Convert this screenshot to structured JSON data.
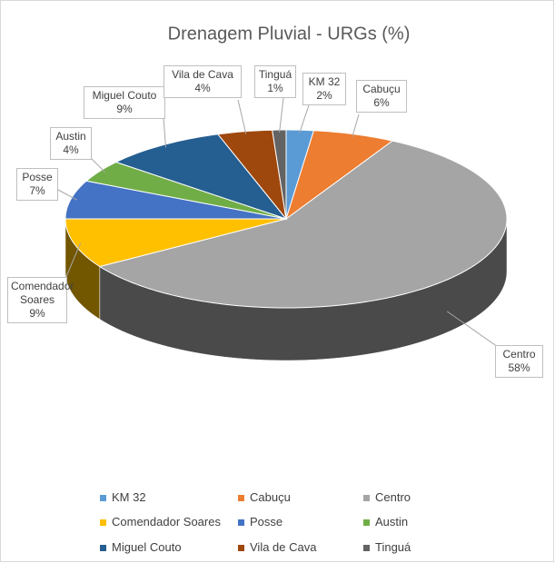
{
  "chart_data": {
    "type": "pie3d",
    "title": "Drenagem Pluvial - URGs (%)",
    "categories": [
      "KM 32",
      "Cabuçu",
      "Centro",
      "Comendador Soares",
      "Posse",
      "Austin",
      "Miguel Couto",
      "Vila de Cava",
      "Tinguá"
    ],
    "values": [
      2,
      6,
      58,
      9,
      7,
      4,
      9,
      4,
      1
    ],
    "value_labels": [
      "2%",
      "6%",
      "58%",
      "9%",
      "7%",
      "4%",
      "9%",
      "4%",
      "1%"
    ],
    "colors": [
      "#5b9bd5",
      "#ed7d31",
      "#a5a5a5",
      "#ffc000",
      "#4472c4",
      "#70ad47",
      "#255e91",
      "#9e480e",
      "#636363"
    ],
    "legend": "bottom"
  }
}
